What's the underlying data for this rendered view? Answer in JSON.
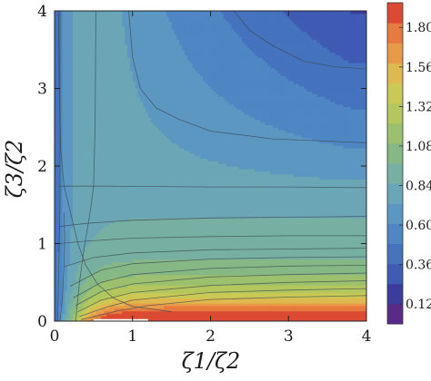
{
  "chart_data": {
    "type": "contour",
    "xlabel": "ζ1/ζ2",
    "ylabel": "ζ3/ζ2",
    "xlim": [
      0,
      4
    ],
    "ylim": [
      0,
      4
    ],
    "xticks": [
      "0",
      "1",
      "2",
      "3",
      "4"
    ],
    "yticks": [
      "0",
      "1",
      "2",
      "3",
      "4"
    ],
    "colorbar": {
      "range": [
        0,
        1.95
      ],
      "ticks": [
        {
          "value": 0.12,
          "label": "0.12"
        },
        {
          "value": 0.36,
          "label": "0.36"
        },
        {
          "value": 0.6,
          "label": "0.600"
        },
        {
          "value": 0.84,
          "label": "0.84"
        },
        {
          "value": 1.08,
          "label": "1.08"
        },
        {
          "value": 1.32,
          "label": "1.32"
        },
        {
          "value": 1.56,
          "label": "1.56"
        },
        {
          "value": 1.8,
          "label": "1.80"
        }
      ],
      "bands": [
        "#5a2a8a",
        "#3a3c9e",
        "#3f5bb3",
        "#4573be",
        "#4f86c4",
        "#5c97c2",
        "#6aa6b6",
        "#77b0a2",
        "#86b886",
        "#9cc16e",
        "#b3c75e",
        "#cbc955",
        "#dfb84f",
        "#e89a48",
        "#e77b3f",
        "#dd4a34"
      ]
    },
    "contours": [
      {
        "level": 0.74,
        "points": [
          [
            0.05,
            4.0
          ],
          [
            0.06,
            3.0
          ],
          [
            0.08,
            2.2
          ],
          [
            0.12,
            1.75
          ],
          [
            0.18,
            1.5
          ],
          [
            0.24,
            1.25
          ],
          [
            0.3,
            1.0
          ],
          [
            0.4,
            0.72
          ],
          [
            0.55,
            0.48
          ],
          [
            0.75,
            0.3
          ],
          [
            1.0,
            0.19
          ],
          [
            1.5,
            0.12
          ]
        ]
      },
      {
        "level": 0.74,
        "points": [
          [
            0.27,
            0.0
          ],
          [
            0.32,
            0.5
          ],
          [
            0.38,
            0.95
          ],
          [
            0.44,
            1.3
          ],
          [
            0.47,
            1.5
          ],
          [
            0.5,
            1.74
          ],
          [
            0.52,
            2.5
          ],
          [
            0.53,
            4.0
          ]
        ]
      },
      {
        "level": 0.74,
        "points": [
          [
            0.06,
            1.74
          ],
          [
            0.7,
            1.74
          ],
          [
            2.0,
            1.73
          ],
          [
            3.0,
            1.73
          ],
          [
            4.0,
            1.72
          ]
        ]
      },
      {
        "level": 0.5,
        "points": [
          [
            0.95,
            4.0
          ],
          [
            1.0,
            3.4
          ],
          [
            1.1,
            3.0
          ],
          [
            1.3,
            2.75
          ],
          [
            1.6,
            2.6
          ],
          [
            2.0,
            2.45
          ],
          [
            2.8,
            2.35
          ],
          [
            4.0,
            2.3
          ]
        ]
      },
      {
        "level": 0.3,
        "points": [
          [
            2.3,
            4.0
          ],
          [
            2.5,
            3.75
          ],
          [
            2.8,
            3.55
          ],
          [
            3.2,
            3.35
          ],
          [
            3.6,
            3.28
          ],
          [
            4.0,
            3.25
          ]
        ]
      },
      {
        "level": 0.9,
        "points": [
          [
            0.06,
            1.22
          ],
          [
            0.4,
            1.26
          ],
          [
            1.0,
            1.3
          ],
          [
            2.0,
            1.33
          ],
          [
            3.0,
            1.34
          ],
          [
            4.0,
            1.35
          ]
        ]
      },
      {
        "level": 1.0,
        "points": [
          [
            0.06,
            1.0
          ],
          [
            0.4,
            1.03
          ],
          [
            1.0,
            1.07
          ],
          [
            2.0,
            1.09
          ],
          [
            3.0,
            1.1
          ],
          [
            4.0,
            1.1
          ]
        ]
      },
      {
        "level": 1.1,
        "points": [
          [
            0.12,
            0.7
          ],
          [
            0.5,
            0.82
          ],
          [
            1.0,
            0.88
          ],
          [
            2.0,
            0.92
          ],
          [
            3.0,
            0.93
          ],
          [
            4.0,
            0.94
          ]
        ]
      },
      {
        "level": 1.2,
        "points": [
          [
            0.2,
            0.45
          ],
          [
            0.6,
            0.66
          ],
          [
            1.0,
            0.74
          ],
          [
            2.0,
            0.8
          ],
          [
            3.0,
            0.82
          ],
          [
            4.0,
            0.83
          ]
        ]
      },
      {
        "level": 1.3,
        "points": [
          [
            0.24,
            0.3
          ],
          [
            0.6,
            0.5
          ],
          [
            1.0,
            0.6
          ],
          [
            2.0,
            0.68
          ],
          [
            3.0,
            0.71
          ],
          [
            4.0,
            0.72
          ]
        ]
      },
      {
        "level": 1.4,
        "points": [
          [
            0.27,
            0.2
          ],
          [
            0.6,
            0.38
          ],
          [
            1.0,
            0.48
          ],
          [
            2.0,
            0.57
          ],
          [
            3.0,
            0.6
          ],
          [
            4.0,
            0.62
          ]
        ]
      },
      {
        "level": 1.5,
        "points": [
          [
            0.3,
            0.12
          ],
          [
            0.6,
            0.27
          ],
          [
            1.0,
            0.37
          ],
          [
            2.0,
            0.46
          ],
          [
            3.0,
            0.5
          ],
          [
            4.0,
            0.52
          ]
        ]
      },
      {
        "level": 1.6,
        "points": [
          [
            0.32,
            0.06
          ],
          [
            0.7,
            0.19
          ],
          [
            1.0,
            0.27
          ],
          [
            2.0,
            0.37
          ],
          [
            3.0,
            0.4
          ],
          [
            4.0,
            0.42
          ]
        ]
      },
      {
        "level": 1.7,
        "points": [
          [
            0.34,
            0.02
          ],
          [
            0.8,
            0.13
          ],
          [
            1.2,
            0.2
          ],
          [
            2.0,
            0.28
          ],
          [
            3.0,
            0.31
          ],
          [
            4.0,
            0.33
          ]
        ]
      },
      {
        "level": 0.3,
        "points": [
          [
            0.07,
            0.0
          ],
          [
            0.1,
            0.3
          ],
          [
            0.12,
            0.7
          ],
          [
            0.13,
            1.1
          ],
          [
            0.12,
            1.4
          ]
        ]
      },
      {
        "level": 0.5,
        "points": [
          [
            0.04,
            0.0
          ],
          [
            0.05,
            0.5
          ],
          [
            0.06,
            1.0
          ],
          [
            0.07,
            1.5
          ],
          [
            0.07,
            2.5
          ],
          [
            0.07,
            4.0
          ]
        ]
      }
    ]
  }
}
